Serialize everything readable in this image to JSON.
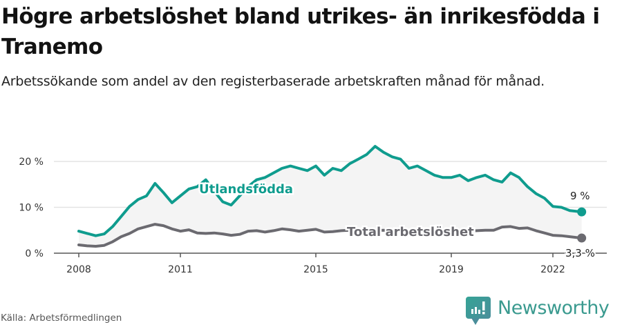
{
  "header": {
    "title": "Högre arbetslöshet bland utrikes- än inrikesfödda i Tranemo",
    "subtitle": "Arbetssökande som andel av den registerbaserade arbetskraften månad för månad."
  },
  "footer": {
    "source": "Källa: Arbetsförmedlingen",
    "logo_text": "Newsworthy",
    "logo_icon": "bar-chart-speech-bubble-icon"
  },
  "colors": {
    "utlandsfodda": "#0f9c8e",
    "total": "#6b6a70",
    "grid": "#e3e3e3",
    "axis": "#555555",
    "band_fill": "#f4f4f4"
  },
  "chart_data": {
    "type": "line",
    "title": "Högre arbetslöshet bland utrikes- än inrikesfödda i Tranemo",
    "subtitle": "Arbetssökande som andel av den registerbaserade arbetskraften månad för månad.",
    "xlabel": "",
    "ylabel": "",
    "ylim": [
      0,
      22
    ],
    "yticks": [
      0,
      10,
      20
    ],
    "ytick_labels": [
      "0 %",
      "10 %",
      "20 %"
    ],
    "xticks": [
      2008,
      2011,
      2015,
      2019,
      2022
    ],
    "xtick_labels": [
      "2008",
      "2011",
      "2015",
      "2019",
      "2022"
    ],
    "grid": true,
    "legend": "inline labels",
    "x": [
      2008.0,
      2008.25,
      2008.5,
      2008.75,
      2009.0,
      2009.25,
      2009.5,
      2009.75,
      2010.0,
      2010.25,
      2010.5,
      2010.75,
      2011.0,
      2011.25,
      2011.5,
      2011.75,
      2012.0,
      2012.25,
      2012.5,
      2012.75,
      2013.0,
      2013.25,
      2013.5,
      2013.75,
      2014.0,
      2014.25,
      2014.5,
      2014.75,
      2015.0,
      2015.25,
      2015.5,
      2015.75,
      2016.0,
      2016.25,
      2016.5,
      2016.75,
      2017.0,
      2017.25,
      2017.5,
      2017.75,
      2018.0,
      2018.25,
      2018.5,
      2018.75,
      2019.0,
      2019.25,
      2019.5,
      2019.75,
      2020.0,
      2020.25,
      2020.5,
      2020.75,
      2021.0,
      2021.25,
      2021.5,
      2021.75,
      2022.0,
      2022.25,
      2022.5,
      2022.85
    ],
    "series": [
      {
        "name": "Utlandsfödda",
        "label": "Utlandsfödda",
        "end_label": "9 %",
        "values": [
          4.8,
          4.3,
          3.8,
          4.2,
          5.8,
          8.0,
          10.2,
          11.7,
          12.5,
          15.2,
          13.2,
          11.0,
          12.5,
          14.0,
          14.5,
          16.0,
          13.5,
          11.2,
          10.5,
          12.5,
          14.5,
          16.0,
          16.5,
          17.5,
          18.5,
          19.0,
          18.5,
          18.0,
          19.0,
          17.0,
          18.5,
          18.0,
          19.5,
          20.5,
          21.5,
          23.3,
          22.0,
          21.0,
          20.5,
          18.5,
          19.0,
          18.0,
          17.0,
          16.5,
          16.5,
          17.0,
          15.8,
          16.5,
          17.0,
          16.0,
          15.5,
          17.5,
          16.5,
          14.5,
          13.0,
          12.0,
          10.2,
          10.0,
          9.3,
          9.0
        ]
      },
      {
        "name": "Total arbetslöshet",
        "label": "Total arbetslöshet",
        "end_label": "3,3 %",
        "values": [
          1.8,
          1.6,
          1.5,
          1.7,
          2.5,
          3.6,
          4.3,
          5.3,
          5.8,
          6.3,
          6.0,
          5.3,
          4.8,
          5.1,
          4.4,
          4.3,
          4.4,
          4.2,
          3.9,
          4.1,
          4.8,
          4.9,
          4.6,
          4.9,
          5.3,
          5.1,
          4.8,
          5.0,
          5.2,
          4.6,
          4.7,
          4.9,
          5.0,
          4.9,
          5.0,
          4.9,
          5.0,
          4.9,
          4.9,
          4.8,
          4.8,
          4.8,
          4.8,
          4.8,
          4.8,
          4.8,
          4.8,
          4.9,
          5.0,
          5.0,
          5.7,
          5.8,
          5.4,
          5.5,
          4.9,
          4.4,
          3.9,
          3.8,
          3.6,
          3.3
        ]
      }
    ]
  }
}
